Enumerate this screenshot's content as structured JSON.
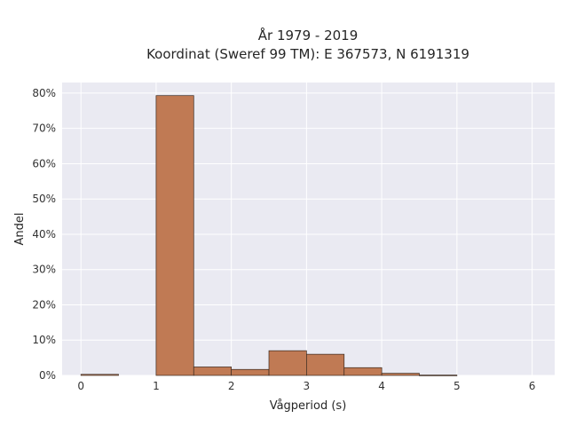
{
  "chart_data": {
    "type": "bar",
    "title": "År 1979 - 2019",
    "subtitle": "Koordinat (Sweref 99 TM): E 367573, N 6191319",
    "xlabel": "Vågperiod (s)",
    "ylabel": "Andel",
    "xlim": [
      -0.25,
      6.3
    ],
    "ylim": [
      0,
      83
    ],
    "xticks": [
      0,
      1,
      2,
      3,
      4,
      5,
      6
    ],
    "yticks": [
      0,
      10,
      20,
      30,
      40,
      50,
      60,
      70,
      80
    ],
    "ytick_labels": [
      "0%",
      "10%",
      "20%",
      "30%",
      "40%",
      "50%",
      "60%",
      "70%",
      "80%"
    ],
    "grid": true,
    "bar_color": "#c07a54",
    "edge_color": "#3a2a20",
    "background": "#eaeaf2",
    "bins": [
      {
        "x0": 0.0,
        "x1": 0.5,
        "value": 0.3
      },
      {
        "x0": 0.5,
        "x1": 1.0,
        "value": 0.0
      },
      {
        "x0": 1.0,
        "x1": 1.5,
        "value": 79.3
      },
      {
        "x0": 1.5,
        "x1": 2.0,
        "value": 2.4
      },
      {
        "x0": 2.0,
        "x1": 2.5,
        "value": 1.7
      },
      {
        "x0": 2.5,
        "x1": 3.0,
        "value": 7.0
      },
      {
        "x0": 3.0,
        "x1": 3.5,
        "value": 6.0
      },
      {
        "x0": 3.5,
        "x1": 4.0,
        "value": 2.2
      },
      {
        "x0": 4.0,
        "x1": 4.5,
        "value": 0.6
      },
      {
        "x0": 4.5,
        "x1": 5.0,
        "value": 0.1
      }
    ]
  }
}
